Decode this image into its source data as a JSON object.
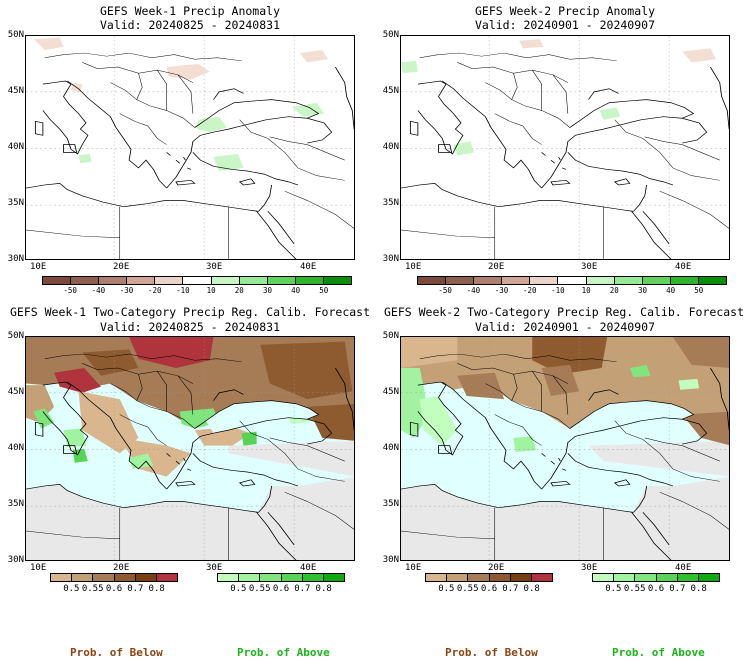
{
  "panels": {
    "tl": {
      "title": "GEFS Week-1 Precip Anomaly",
      "valid": "Valid: 20240825 - 20240831"
    },
    "tr": {
      "title": "GEFS Week-2 Precip Anomaly",
      "valid": "Valid: 20240901 - 20240907"
    },
    "bl": {
      "title": "GEFS Week-1 Two-Category Precip Reg. Calib. Forecast",
      "valid": "Valid: 20240825 - 20240831"
    },
    "br": {
      "title": "GEFS Week-2 Two-Category Precip Reg. Calib. Forecast",
      "valid": "Valid: 20240901 - 20240907"
    }
  },
  "axes": {
    "lat": [
      "50N",
      "45N",
      "40N",
      "35N",
      "30N"
    ],
    "lon": [
      "10E",
      "20E",
      "30E",
      "40E"
    ]
  },
  "anomaly_scale": {
    "ticks": [
      "-50",
      "-40",
      "-30",
      "-20",
      "-10",
      "10",
      "20",
      "30",
      "40",
      "50"
    ],
    "colors": [
      "#7b4a3a",
      "#8f5f4e",
      "#ae7f6e",
      "#d1a596",
      "#ecd3c8",
      "#ffffff",
      "#c7f5c4",
      "#96e995",
      "#5fd35e",
      "#2fb42d",
      "#0a8f0a"
    ]
  },
  "below_scale": {
    "ticks": [
      "0.5",
      "0.55",
      "0.6",
      "0.7",
      "0.8"
    ],
    "colors": [
      "#d9b68e",
      "#c4a077",
      "#a57c56",
      "#8d5b2f",
      "#764012",
      "#b0343c"
    ]
  },
  "above_scale": {
    "ticks": [
      "0.5",
      "0.55",
      "0.6",
      "0.7",
      "0.8"
    ],
    "colors": [
      "#c2ffbf",
      "#a2f39f",
      "#80e57c",
      "#57d455",
      "#30c02b",
      "#12a812"
    ]
  },
  "legend": {
    "below": "Prob. of Below",
    "above": "Prob. of Above"
  },
  "colors": {
    "sea": "#e0ffff",
    "gray": "#e8e8e8",
    "below_label": "#8b4513",
    "above_label": "#1ab51a"
  }
}
